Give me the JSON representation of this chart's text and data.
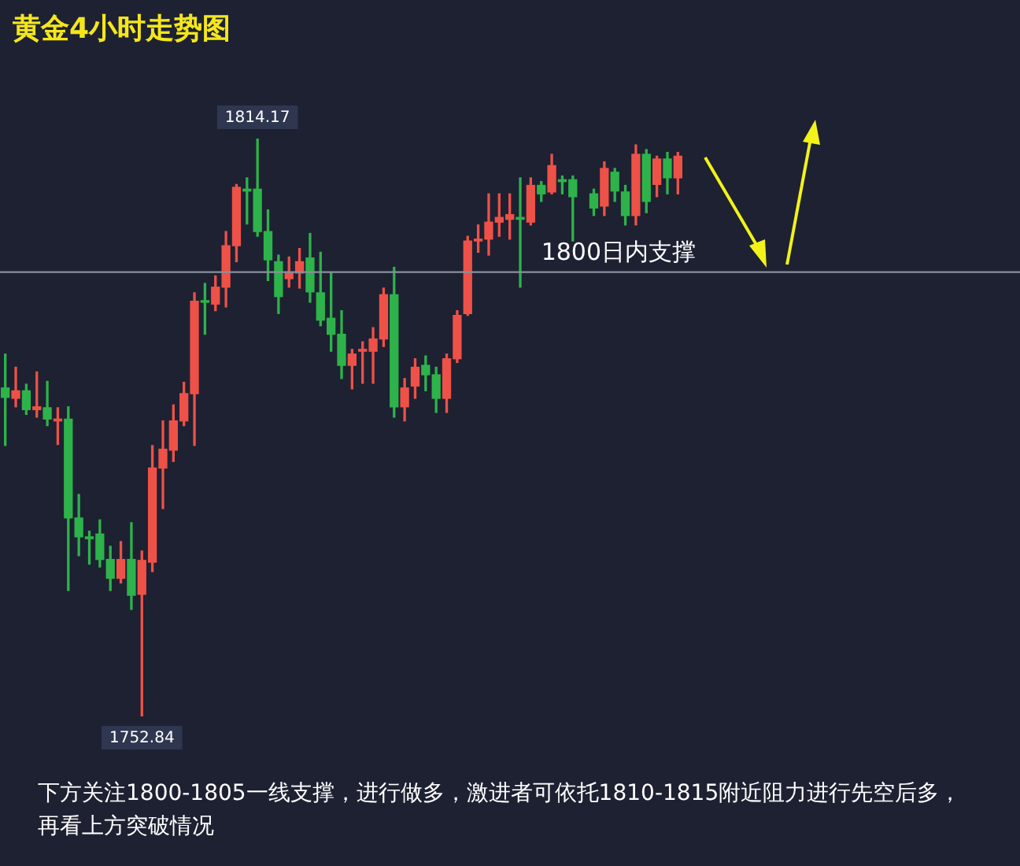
{
  "chart_data": {
    "type": "candlestick",
    "title": "黄金4小时走势图",
    "categories": [
      null,
      null,
      null,
      null,
      null,
      null,
      null,
      null,
      null,
      null,
      null,
      null,
      null,
      null,
      null,
      null,
      null,
      null,
      null,
      null,
      null,
      null,
      null,
      null,
      null,
      null,
      null,
      null,
      null,
      null,
      null,
      null,
      null,
      null,
      null,
      null,
      null,
      null,
      null,
      null,
      null,
      null,
      null,
      null,
      null,
      null,
      null,
      null,
      null,
      null,
      null,
      null,
      null,
      null,
      null,
      null,
      null,
      null,
      null,
      null,
      null,
      null,
      null,
      null,
      null
    ],
    "ohlc": [
      [
        1787.7,
        1791.3,
        1781.6,
        1786.7
      ],
      [
        1786.6,
        1789.9,
        1785.7,
        1787.4
      ],
      [
        1787.4,
        1788.1,
        1784.9,
        1785.4
      ],
      [
        1785.4,
        1789.4,
        1784.6,
        1785.7
      ],
      [
        1785.6,
        1788.4,
        1783.7,
        1784.4
      ],
      [
        1784.2,
        1785.6,
        1781.7,
        1784.4
      ],
      [
        1784.4,
        1785.7,
        1766.2,
        1773.9
      ],
      [
        1773.9,
        1776.4,
        1769.9,
        1771.9
      ],
      [
        1771.9,
        1772.5,
        1769.0,
        1771.7
      ],
      [
        1772.2,
        1773.7,
        1768.7,
        1769.5
      ],
      [
        1769.5,
        1770.9,
        1766.2,
        1767.5
      ],
      [
        1767.5,
        1771.4,
        1767.0,
        1769.5
      ],
      [
        1769.5,
        1773.4,
        1764.2,
        1765.7
      ],
      [
        1765.8,
        1770.4,
        1752.84,
        1769.4
      ],
      [
        1769.2,
        1781.6,
        1768.2,
        1779.2
      ],
      [
        1779.2,
        1784.2,
        1774.9,
        1781.2
      ],
      [
        1781.1,
        1785.9,
        1779.9,
        1784.2
      ],
      [
        1784.2,
        1788.3,
        1783.7,
        1787.1
      ],
      [
        1787.1,
        1797.8,
        1781.6,
        1796.9
      ],
      [
        1796.9,
        1798.8,
        1793.4,
        1796.8
      ],
      [
        1796.6,
        1799.6,
        1795.9,
        1798.4
      ],
      [
        1798.4,
        1804.3,
        1796.3,
        1802.8
      ],
      [
        1802.8,
        1809.3,
        1801.1,
        1809.0
      ],
      [
        1808.8,
        1810.0,
        1805.1,
        1808.6
      ],
      [
        1808.8,
        1814.17,
        1803.8,
        1804.3
      ],
      [
        1804.3,
        1806.6,
        1799.1,
        1801.3
      ],
      [
        1801.1,
        1801.8,
        1795.6,
        1797.4
      ],
      [
        1799.3,
        1801.6,
        1798.4,
        1799.9
      ],
      [
        1799.9,
        1802.5,
        1798.3,
        1801.1
      ],
      [
        1801.5,
        1804.1,
        1796.8,
        1797.9
      ],
      [
        1797.8,
        1802.1,
        1794.3,
        1794.9
      ],
      [
        1795.1,
        1799.9,
        1791.6,
        1793.4
      ],
      [
        1793.4,
        1795.9,
        1788.7,
        1790.1
      ],
      [
        1790.1,
        1791.8,
        1787.6,
        1791.3
      ],
      [
        1791.6,
        1792.6,
        1788.2,
        1791.8
      ],
      [
        1791.6,
        1794.1,
        1788.2,
        1792.9
      ],
      [
        1792.9,
        1798.3,
        1792.1,
        1797.6
      ],
      [
        1797.6,
        1800.5,
        1784.6,
        1785.7
      ],
      [
        1785.7,
        1788.7,
        1784.2,
        1787.7
      ],
      [
        1787.9,
        1790.8,
        1786.6,
        1789.9
      ],
      [
        1790.1,
        1791.1,
        1787.4,
        1789.1
      ],
      [
        1789.1,
        1789.9,
        1785.1,
        1786.6
      ],
      [
        1786.6,
        1791.3,
        1785.1,
        1790.8
      ],
      [
        1790.8,
        1795.9,
        1790.4,
        1795.4
      ],
      [
        1795.6,
        1803.8,
        1795.4,
        1803.3
      ],
      [
        1803.3,
        1805.0,
        1802.1,
        1803.5
      ],
      [
        1803.5,
        1808.3,
        1801.8,
        1805.3
      ],
      [
        1805.3,
        1808.3,
        1803.8,
        1805.8
      ],
      [
        1805.6,
        1808.3,
        1803.5,
        1806.1
      ],
      [
        1805.8,
        1810.0,
        1798.4,
        1805.6
      ],
      [
        1805.3,
        1810.0,
        1805.0,
        1809.2
      ],
      [
        1809.2,
        1809.6,
        1807.5,
        1808.3
      ],
      [
        1808.5,
        1812.5,
        1808.3,
        1811.3
      ],
      [
        1809.8,
        1810.2,
        1808.3,
        1809.6
      ],
      [
        1809.8,
        1810.2,
        1803.3,
        1808.0
      ],
      null,
      [
        1808.3,
        1808.8,
        1806.0,
        1806.8
      ],
      [
        1807.0,
        1811.7,
        1806.0,
        1811.0
      ],
      [
        1810.6,
        1811.0,
        1807.5,
        1808.6
      ],
      [
        1808.5,
        1809.2,
        1805.0,
        1806.0
      ],
      [
        1806.0,
        1813.5,
        1805.0,
        1812.5
      ],
      [
        1812.5,
        1813.0,
        1806.3,
        1807.5
      ],
      [
        1809.3,
        1812.3,
        1808.0,
        1812.0
      ],
      [
        1812.0,
        1812.7,
        1808.3,
        1810.0
      ],
      [
        1810.0,
        1812.7,
        1808.3,
        1812.3
      ]
    ],
    "colors": [
      "#2db34a",
      "#ee5147",
      "#2db34a",
      "#ee5147",
      "#2db34a",
      "#ee5147",
      "#2db34a",
      "#2db34a",
      "#2db34a",
      "#2db34a",
      "#2db34a",
      "#ee5147",
      "#2db34a",
      "#ee5147",
      "#ee5147",
      "#ee5147",
      "#ee5147",
      "#ee5147",
      "#ee5147",
      "#2db34a",
      "#ee5147",
      "#ee5147",
      "#ee5147",
      "#2db34a",
      "#2db34a",
      "#2db34a",
      "#2db34a",
      "#ee5147",
      "#ee5147",
      "#2db34a",
      "#2db34a",
      "#2db34a",
      "#2db34a",
      "#ee5147",
      "#ee5147",
      "#ee5147",
      "#ee5147",
      "#2db34a",
      "#ee5147",
      "#ee5147",
      "#2db34a",
      "#2db34a",
      "#ee5147",
      "#ee5147",
      "#ee5147",
      "#ee5147",
      "#ee5147",
      "#ee5147",
      "#ee5147",
      "#2db34a",
      "#ee5147",
      "#2db34a",
      "#ee5147",
      "#2db34a",
      "#2db34a",
      null,
      "#2db34a",
      "#ee5147",
      "#2db34a",
      "#2db34a",
      "#ee5147",
      "#2db34a",
      "#ee5147",
      "#2db34a",
      "#ee5147"
    ],
    "ref_lines": [
      {
        "axis": "y",
        "value": 1800,
        "label": "1800日内支撑",
        "color": "#8a8f9c"
      }
    ],
    "annotations": [
      {
        "text": "1814.17",
        "y": 1814.17
      },
      {
        "text": "1752.84",
        "y": 1752.84
      },
      "下方关注1800-1805一线支撑，进行做多，激进者可依托1810-1815附近阻力进行先空后多，再看上方突破情况"
    ],
    "tick_labels": false
  }
}
